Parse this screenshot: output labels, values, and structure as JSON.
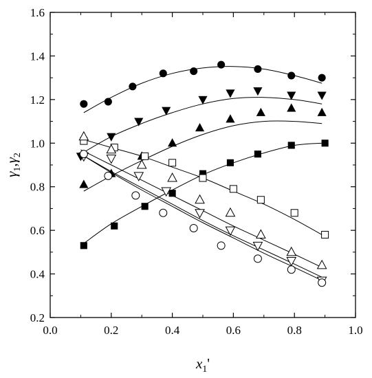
{
  "chart_data": {
    "type": "scatter",
    "xlabel": "x1'",
    "ylabel": "γ1,γ2",
    "xlim": [
      0.0,
      1.0
    ],
    "ylim": [
      0.2,
      1.6
    ],
    "xticks": [
      "0.0",
      "0.2",
      "0.4",
      "0.6",
      "0.8",
      "1.0"
    ],
    "yticks": [
      "0.2",
      "0.4",
      "0.6",
      "0.8",
      "1.0",
      "1.2",
      "1.4",
      "1.6"
    ],
    "grid": false,
    "legend": "none",
    "series": [
      {
        "marker": "filled-circle",
        "points": [
          [
            0.11,
            1.18
          ],
          [
            0.19,
            1.19
          ],
          [
            0.27,
            1.26
          ],
          [
            0.37,
            1.32
          ],
          [
            0.47,
            1.33
          ],
          [
            0.56,
            1.36
          ],
          [
            0.68,
            1.34
          ],
          [
            0.79,
            1.31
          ],
          [
            0.89,
            1.3
          ]
        ]
      },
      {
        "marker": "filled-triangle-down",
        "points": [
          [
            0.1,
            0.94
          ],
          [
            0.2,
            1.03
          ],
          [
            0.29,
            1.1
          ],
          [
            0.38,
            1.15
          ],
          [
            0.5,
            1.2
          ],
          [
            0.59,
            1.23
          ],
          [
            0.68,
            1.24
          ],
          [
            0.79,
            1.22
          ],
          [
            0.89,
            1.22
          ]
        ]
      },
      {
        "marker": "filled-triangle-up",
        "points": [
          [
            0.11,
            0.81
          ],
          [
            0.2,
            0.86
          ],
          [
            0.3,
            0.94
          ],
          [
            0.4,
            1.0
          ],
          [
            0.49,
            1.07
          ],
          [
            0.59,
            1.11
          ],
          [
            0.69,
            1.14
          ],
          [
            0.79,
            1.16
          ],
          [
            0.89,
            1.14
          ]
        ]
      },
      {
        "marker": "filled-square",
        "points": [
          [
            0.11,
            0.53
          ],
          [
            0.21,
            0.62
          ],
          [
            0.31,
            0.71
          ],
          [
            0.4,
            0.77
          ],
          [
            0.5,
            0.86
          ],
          [
            0.59,
            0.91
          ],
          [
            0.68,
            0.95
          ],
          [
            0.79,
            0.99
          ],
          [
            0.9,
            1.0
          ]
        ]
      },
      {
        "marker": "open-square",
        "points": [
          [
            0.11,
            1.01
          ],
          [
            0.21,
            0.98
          ],
          [
            0.31,
            0.94
          ],
          [
            0.4,
            0.91
          ],
          [
            0.5,
            0.84
          ],
          [
            0.6,
            0.79
          ],
          [
            0.69,
            0.74
          ],
          [
            0.8,
            0.68
          ],
          [
            0.9,
            0.58
          ]
        ]
      },
      {
        "marker": "open-triangle-up",
        "points": [
          [
            0.11,
            1.03
          ],
          [
            0.2,
            0.97
          ],
          [
            0.3,
            0.9
          ],
          [
            0.4,
            0.84
          ],
          [
            0.49,
            0.74
          ],
          [
            0.59,
            0.68
          ],
          [
            0.69,
            0.58
          ],
          [
            0.79,
            0.5
          ],
          [
            0.89,
            0.44
          ]
        ]
      },
      {
        "marker": "open-triangle-down",
        "points": [
          [
            0.11,
            0.94
          ],
          [
            0.2,
            0.93
          ],
          [
            0.29,
            0.85
          ],
          [
            0.38,
            0.78
          ],
          [
            0.49,
            0.68
          ],
          [
            0.59,
            0.6
          ],
          [
            0.68,
            0.53
          ],
          [
            0.79,
            0.46
          ],
          [
            0.89,
            0.37
          ]
        ]
      },
      {
        "marker": "open-circle",
        "points": [
          [
            0.11,
            0.95
          ],
          [
            0.19,
            0.85
          ],
          [
            0.28,
            0.76
          ],
          [
            0.37,
            0.68
          ],
          [
            0.47,
            0.61
          ],
          [
            0.56,
            0.53
          ],
          [
            0.68,
            0.47
          ],
          [
            0.79,
            0.42
          ],
          [
            0.89,
            0.36
          ]
        ]
      }
    ],
    "curves": [
      [
        [
          0.11,
          1.14
        ],
        [
          0.2,
          1.21
        ],
        [
          0.3,
          1.275
        ],
        [
          0.4,
          1.32
        ],
        [
          0.5,
          1.345
        ],
        [
          0.6,
          1.352
        ],
        [
          0.7,
          1.34
        ],
        [
          0.8,
          1.31
        ],
        [
          0.89,
          1.275
        ]
      ],
      [
        [
          0.1,
          0.95
        ],
        [
          0.2,
          1.03
        ],
        [
          0.3,
          1.09
        ],
        [
          0.4,
          1.14
        ],
        [
          0.5,
          1.18
        ],
        [
          0.6,
          1.205
        ],
        [
          0.7,
          1.21
        ],
        [
          0.8,
          1.2
        ],
        [
          0.89,
          1.18
        ]
      ],
      [
        [
          0.11,
          0.78
        ],
        [
          0.2,
          0.85
        ],
        [
          0.3,
          0.92
        ],
        [
          0.4,
          0.985
        ],
        [
          0.5,
          1.04
        ],
        [
          0.6,
          1.08
        ],
        [
          0.7,
          1.1
        ],
        [
          0.8,
          1.1
        ],
        [
          0.89,
          1.09
        ]
      ],
      [
        [
          0.11,
          0.54
        ],
        [
          0.2,
          0.63
        ],
        [
          0.3,
          0.71
        ],
        [
          0.4,
          0.785
        ],
        [
          0.5,
          0.855
        ],
        [
          0.6,
          0.91
        ],
        [
          0.7,
          0.955
        ],
        [
          0.8,
          0.99
        ],
        [
          0.89,
          1.0
        ]
      ],
      [
        [
          0.1,
          1.02
        ],
        [
          0.2,
          0.98
        ],
        [
          0.3,
          0.94
        ],
        [
          0.4,
          0.89
        ],
        [
          0.5,
          0.84
        ],
        [
          0.6,
          0.78
        ],
        [
          0.7,
          0.72
        ],
        [
          0.8,
          0.65
        ],
        [
          0.89,
          0.58
        ]
      ],
      [
        [
          0.1,
          0.97
        ],
        [
          0.2,
          0.9
        ],
        [
          0.3,
          0.83
        ],
        [
          0.4,
          0.76
        ],
        [
          0.5,
          0.69
        ],
        [
          0.6,
          0.62
        ],
        [
          0.7,
          0.555
        ],
        [
          0.8,
          0.49
        ],
        [
          0.89,
          0.43
        ]
      ],
      [
        [
          0.1,
          0.95
        ],
        [
          0.2,
          0.87
        ],
        [
          0.3,
          0.795
        ],
        [
          0.4,
          0.72
        ],
        [
          0.5,
          0.645
        ],
        [
          0.6,
          0.575
        ],
        [
          0.7,
          0.51
        ],
        [
          0.8,
          0.445
        ],
        [
          0.89,
          0.385
        ]
      ],
      [
        [
          0.1,
          0.95
        ],
        [
          0.2,
          0.865
        ],
        [
          0.3,
          0.785
        ],
        [
          0.4,
          0.71
        ],
        [
          0.5,
          0.635
        ],
        [
          0.6,
          0.565
        ],
        [
          0.7,
          0.495
        ],
        [
          0.8,
          0.43
        ],
        [
          0.89,
          0.37
        ]
      ]
    ]
  }
}
